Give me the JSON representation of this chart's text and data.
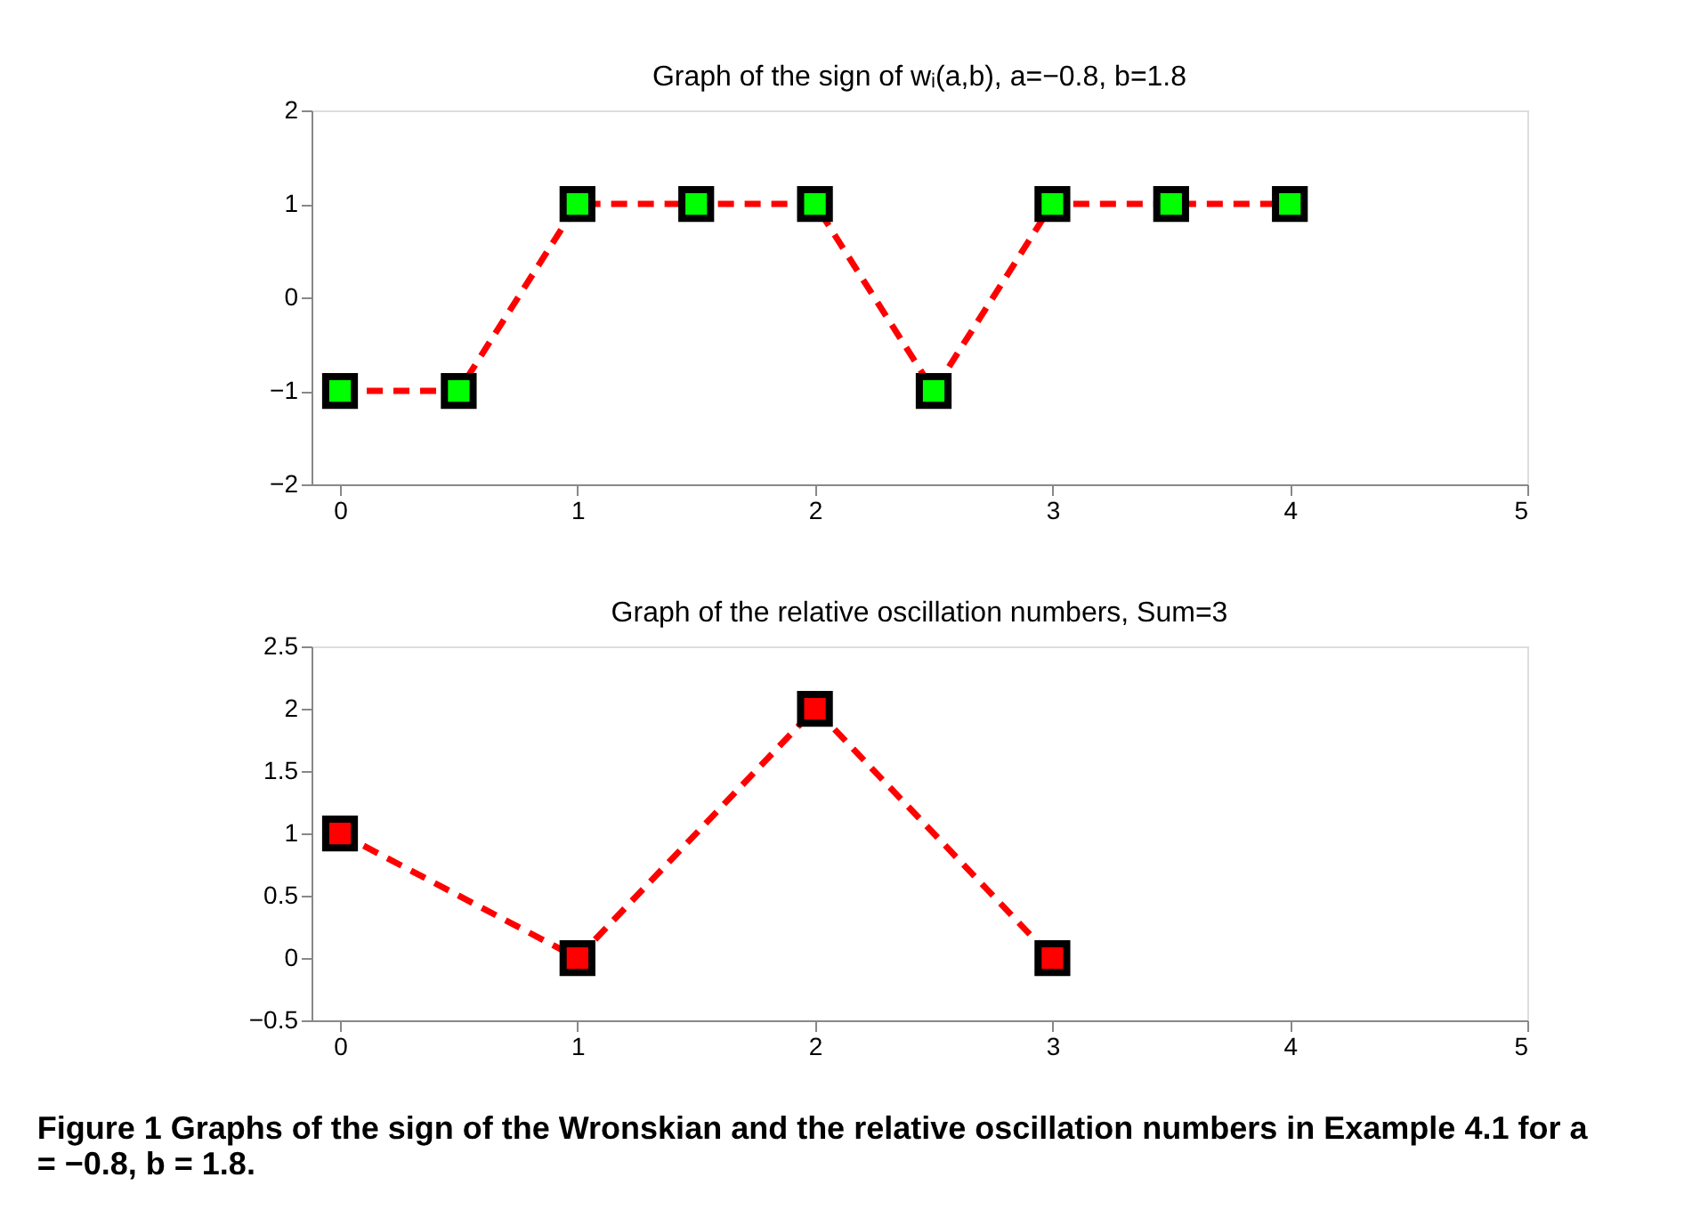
{
  "chart_data": [
    {
      "type": "line",
      "title": "Graph of the sign of wᵢ(a,b), a=−0.8, b=1.8",
      "x": [
        0,
        0.5,
        1,
        1.5,
        2,
        2.5,
        3,
        3.5,
        4
      ],
      "series": [
        {
          "color": "#ff0000",
          "colors": [
            "#00ff00",
            "#00ff00",
            "#00ff00",
            "#00ff00",
            "#00ff00",
            "#00ff00",
            "#00ff00",
            "#00ff00",
            "#00ff00"
          ],
          "values": [
            -1,
            -1,
            1,
            1,
            1,
            -1,
            1,
            1,
            1
          ]
        }
      ],
      "xlim": [
        -0.12,
        5
      ],
      "xticks": [
        0,
        1,
        2,
        3,
        4,
        5
      ],
      "ylim": [
        -2,
        2
      ],
      "yticks": [
        -2,
        -1,
        0,
        1,
        2
      ],
      "grid": false,
      "marker": "square",
      "line_style": "dashed"
    },
    {
      "type": "line",
      "title": "Graph of the relative oscillation numbers, Sum=3",
      "x": [
        0,
        1,
        2,
        3
      ],
      "series": [
        {
          "color": "#ff0000",
          "colors": [
            "#ff0000",
            "#ff0000",
            "#ff0000",
            "#ff0000"
          ],
          "values": [
            1,
            0,
            2,
            0
          ]
        }
      ],
      "xlim": [
        -0.12,
        5
      ],
      "xticks": [
        0,
        1,
        2,
        3,
        4,
        5
      ],
      "ylim": [
        -0.5,
        2.5
      ],
      "yticks": [
        -0.5,
        0,
        0.5,
        1,
        1.5,
        2,
        2.5
      ],
      "grid": false,
      "marker": "square",
      "line_style": "dashed",
      "annotations": [
        "Figure 1  Graphs of the sign of the Wronskian and the relative oscillation numbers in Example 4.1 for a = −0.8, b = 1.8."
      ]
    }
  ]
}
